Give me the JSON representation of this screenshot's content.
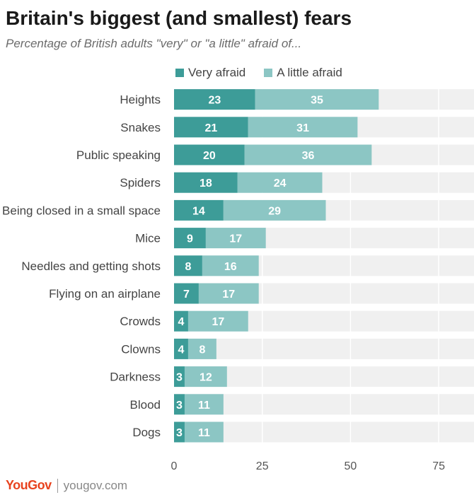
{
  "header": {
    "title": "Britain's biggest (and smallest) fears",
    "subtitle": "Percentage of British adults \"very\" or \"a little\" afraid of..."
  },
  "footer": {
    "logo_text": "YouGov",
    "site": "yougov.com"
  },
  "colors": {
    "very_afraid": "#3d9c98",
    "a_little_afraid": "#8cc6c4",
    "track": "#f0f0f0",
    "gridline": "#ffffff",
    "logo": "#e8431f"
  },
  "chart_data": {
    "type": "bar",
    "orientation": "horizontal",
    "stacked": true,
    "categories": [
      "Heights",
      "Snakes",
      "Public speaking",
      "Spiders",
      "Being closed in a small space",
      "Mice",
      "Needles and getting shots",
      "Flying on an airplane",
      "Crowds",
      "Clowns",
      "Darkness",
      "Blood",
      "Dogs"
    ],
    "series": [
      {
        "name": "Very afraid",
        "values": [
          23,
          21,
          20,
          18,
          14,
          9,
          8,
          7,
          4,
          4,
          3,
          3,
          3
        ]
      },
      {
        "name": "A little afraid",
        "values": [
          35,
          31,
          36,
          24,
          29,
          17,
          16,
          17,
          17,
          8,
          12,
          11,
          11
        ]
      }
    ],
    "xlim": [
      0,
      85
    ],
    "xticks": [
      0,
      25,
      50,
      75
    ],
    "legend_position": "top",
    "grid": true,
    "data_labels": true
  }
}
